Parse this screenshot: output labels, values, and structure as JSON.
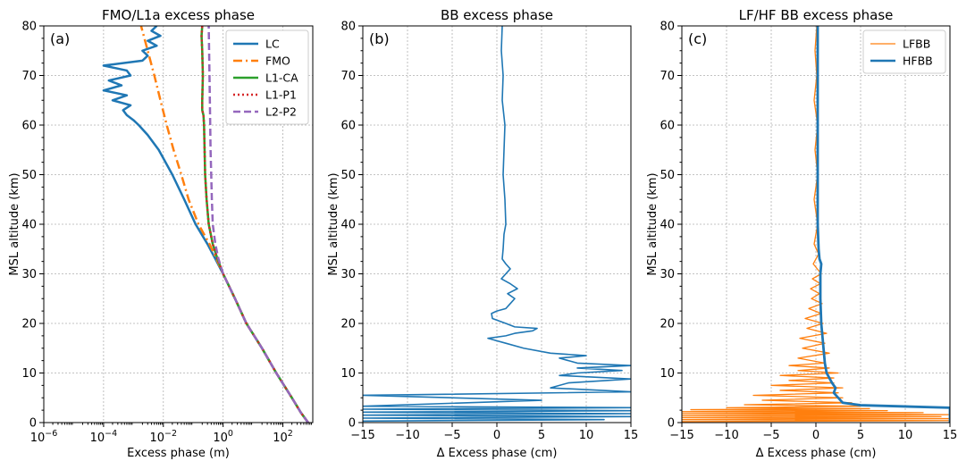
{
  "chart_data": [
    {
      "type": "line",
      "title": "FMO/L1a excess phase",
      "panel_label": "(a)",
      "xlabel": "Excess phase (m)",
      "ylabel": "MSL altitude (km)",
      "xscale": "log",
      "xlim": [
        1e-06,
        1000
      ],
      "ylim": [
        0,
        80
      ],
      "xticks": [
        1e-06,
        0.0001,
        0.01,
        1,
        100
      ],
      "xtick_labels": [
        {
          "b": "10",
          "e": "−6"
        },
        {
          "b": "10",
          "e": "−4"
        },
        {
          "b": "10",
          "e": "−2"
        },
        {
          "b": "10",
          "e": "0"
        },
        {
          "b": "10",
          "e": "2"
        }
      ],
      "yticks": [
        0,
        10,
        20,
        30,
        40,
        50,
        60,
        70,
        80
      ],
      "grid": true,
      "legend_position": "top-right",
      "series": [
        {
          "name": "LC",
          "color": "#1f77b4",
          "style": "solid",
          "width": 2.5,
          "y": [
            0,
            2,
            5,
            10,
            15,
            20,
            25,
            30,
            33,
            36,
            40,
            45,
            50,
            55,
            58,
            60,
            61,
            62,
            63,
            64,
            65,
            66,
            67,
            68,
            69,
            70,
            71,
            72,
            73,
            74,
            75,
            76,
            77,
            78,
            79,
            80
          ],
          "x": [
            700,
            400,
            200,
            60,
            20,
            6,
            2.5,
            1,
            0.55,
            0.3,
            0.12,
            0.05,
            0.02,
            0.007,
            0.003,
            0.0015,
            0.001,
            0.0006,
            0.00045,
            0.0008,
            0.0002,
            0.0006,
            0.0001,
            0.0004,
            0.00015,
            0.0008,
            0.0006,
            0.0001,
            0.002,
            0.003,
            0.002,
            0.006,
            0.003,
            0.008,
            0.004,
            0.006
          ]
        },
        {
          "name": "FMO",
          "color": "#ff7f0e",
          "style": "dashdot",
          "width": 2.5,
          "y": [
            0,
            2,
            5,
            10,
            15,
            20,
            25,
            30,
            33,
            36,
            40,
            45,
            50,
            55,
            60,
            65,
            70,
            75,
            80
          ],
          "x": [
            700,
            400,
            200,
            60,
            20,
            6,
            2.5,
            1,
            0.6,
            0.35,
            0.15,
            0.07,
            0.04,
            0.022,
            0.013,
            0.008,
            0.005,
            0.003,
            0.0018
          ]
        },
        {
          "name": "L1-CA",
          "color": "#2ca02c",
          "style": "solid",
          "width": 2.5,
          "y": [
            0,
            2,
            5,
            10,
            15,
            20,
            25,
            30,
            33,
            36,
            40,
            45,
            50,
            55,
            60,
            62,
            63,
            65,
            70,
            75,
            78,
            80
          ],
          "x": [
            700,
            400,
            200,
            60,
            20,
            6,
            2.5,
            1,
            0.65,
            0.45,
            0.33,
            0.28,
            0.25,
            0.24,
            0.23,
            0.22,
            0.2,
            0.2,
            0.21,
            0.2,
            0.19,
            0.2
          ]
        },
        {
          "name": "L1-P1",
          "color": "#d62728",
          "style": "dotted",
          "width": 2.5,
          "y": [
            0,
            2,
            5,
            10,
            15,
            20,
            25,
            30,
            33,
            36,
            40,
            45,
            50,
            55,
            60,
            62,
            63,
            65,
            70,
            75,
            78,
            80
          ],
          "x": [
            700,
            400,
            200,
            60,
            20,
            6,
            2.5,
            1,
            0.65,
            0.45,
            0.33,
            0.28,
            0.25,
            0.24,
            0.23,
            0.22,
            0.2,
            0.2,
            0.21,
            0.2,
            0.19,
            0.2
          ]
        },
        {
          "name": "L2-P2",
          "color": "#9467bd",
          "style": "dashed",
          "width": 2.5,
          "y": [
            0,
            2,
            5,
            10,
            15,
            20,
            25,
            30,
            33,
            36,
            40,
            45,
            50,
            55,
            60,
            65,
            70,
            75,
            80
          ],
          "x": [
            700,
            400,
            200,
            60,
            20,
            6,
            2.5,
            1,
            0.7,
            0.55,
            0.45,
            0.42,
            0.4,
            0.38,
            0.37,
            0.36,
            0.35,
            0.34,
            0.33
          ]
        }
      ]
    },
    {
      "type": "line",
      "title": "BB excess phase",
      "panel_label": "(b)",
      "xlabel": "Δ Excess phase (cm)",
      "ylabel": "MSL altitude (km)",
      "xscale": "linear",
      "xlim": [
        -15,
        15
      ],
      "ylim": [
        0,
        80
      ],
      "xticks": [
        -15,
        -10,
        -5,
        0,
        5,
        10,
        15
      ],
      "xtick_labels": [
        "−15",
        "−10",
        "−5",
        "0",
        "5",
        "10",
        "15"
      ],
      "yticks": [
        0,
        10,
        20,
        30,
        40,
        50,
        60,
        70,
        80
      ],
      "grid": true,
      "series": [
        {
          "name": "",
          "color": "#1f77b4",
          "style": "solid",
          "width": 1.6,
          "y": [
            0.3,
            0.6,
            0.9,
            1.2,
            1.5,
            1.8,
            2.1,
            2.4,
            2.7,
            3.0,
            3.3,
            4.5,
            5.5,
            6.2,
            7.0,
            8.0,
            8.8,
            9.5,
            10.0,
            10.5,
            11.0,
            11.5,
            12.0,
            13.0,
            13.5,
            14.0,
            15.0,
            16.0,
            17.0,
            17.5,
            18.0,
            18.5,
            19.0,
            19.3,
            20.0,
            21.0,
            22.0,
            22.5,
            23.0,
            24.0,
            25.0,
            26.0,
            27.0,
            28.0,
            29.0,
            30.0,
            31.0,
            32.0,
            33.0,
            35.0,
            38.0,
            40.0,
            45.0,
            50.0,
            55.0,
            60.0,
            65.0,
            70.0,
            75.0,
            80.0
          ],
          "x": [
            -15,
            12,
            -15,
            15,
            -15,
            15,
            -15,
            15,
            -15,
            15,
            -15,
            5,
            -15,
            15,
            6,
            8,
            15,
            7,
            9,
            14,
            9,
            15,
            9,
            7,
            10,
            6,
            3,
            1,
            -1,
            1,
            2,
            4,
            4.5,
            2,
            1,
            -0.5,
            -0.6,
            0,
            1,
            1.5,
            2,
            1.2,
            2.3,
            1.5,
            0.5,
            1,
            1.5,
            1,
            0.6,
            0.7,
            0.8,
            1,
            0.9,
            0.7,
            0.8,
            0.9,
            0.6,
            0.7,
            0.5,
            0.6
          ]
        }
      ]
    },
    {
      "type": "line",
      "title": "LF/HF BB excess phase",
      "panel_label": "(c)",
      "xlabel": "Δ Excess phase (cm)",
      "ylabel": "MSL altitude (km)",
      "xscale": "linear",
      "xlim": [
        -15,
        15
      ],
      "ylim": [
        0,
        80
      ],
      "xticks": [
        -15,
        -10,
        -5,
        0,
        5,
        10,
        15
      ],
      "xtick_labels": [
        "−15",
        "−10",
        "−5",
        "0",
        "5",
        "10",
        "15"
      ],
      "yticks": [
        0,
        10,
        20,
        30,
        40,
        50,
        60,
        70,
        80
      ],
      "grid": true,
      "legend_position": "top-right",
      "series": [
        {
          "name": "LFBB",
          "color": "#ff7f0e",
          "style": "solid",
          "width": 1.3,
          "y": [
            0.2,
            0.4,
            0.6,
            0.8,
            1.0,
            1.2,
            1.4,
            1.6,
            1.8,
            2.0,
            2.2,
            2.4,
            2.6,
            2.8,
            3.0,
            3.3,
            3.6,
            4.0,
            4.5,
            5.0,
            5.5,
            6.0,
            6.5,
            7.0,
            7.5,
            8.0,
            8.5,
            9.0,
            9.5,
            10.0,
            10.5,
            11.0,
            11.5,
            12.0,
            13.0,
            14.0,
            15.0,
            16.0,
            17.0,
            18.0,
            19.0,
            20.0,
            21.0,
            22.0,
            23.0,
            24.0,
            25.0,
            26.0,
            27.0,
            28.0,
            29.0,
            30.0,
            32.0,
            34.0,
            36.0,
            40.0,
            45.0,
            50.0,
            55.0,
            60.0,
            65.0,
            70.0,
            75.0,
            80.0
          ],
          "x": [
            -15,
            15,
            -15,
            15,
            -15,
            14,
            -15,
            15,
            -15,
            12,
            -15,
            8,
            -14,
            6,
            -10,
            5,
            -8,
            4,
            -6,
            3,
            -7,
            2.5,
            -4,
            3,
            -5,
            2,
            -3,
            2,
            -4,
            2.5,
            -2,
            1.5,
            -3,
            1,
            -2,
            1.5,
            -1.5,
            1,
            -1.8,
            1.2,
            -1,
            0.8,
            -1.2,
            0.6,
            -0.8,
            0.7,
            -0.5,
            0.4,
            -0.6,
            0.5,
            -0.4,
            0.6,
            -0.3,
            0.3,
            -0.2,
            0.2,
            -0.2,
            0.2,
            -0.1,
            0.2,
            -0.2,
            0.1,
            -0.1,
            0.1
          ]
        },
        {
          "name": "HFBB",
          "color": "#1f77b4",
          "style": "solid",
          "width": 2.8,
          "y": [
            0,
            1,
            2,
            3,
            3.5,
            4,
            5,
            6,
            7,
            8,
            9,
            10,
            12,
            14,
            16,
            18,
            20,
            25,
            30,
            32,
            33,
            35,
            40,
            50,
            60,
            70,
            80
          ],
          "x": [
            15,
            15,
            15,
            15,
            5,
            3,
            2.5,
            2,
            2.2,
            1.8,
            1.5,
            1.2,
            1.0,
            0.9,
            0.8,
            0.7,
            0.6,
            0.5,
            0.5,
            0.6,
            0.4,
            0.3,
            0.2,
            0.2,
            0.2,
            0.2,
            0.2
          ]
        }
      ]
    }
  ]
}
